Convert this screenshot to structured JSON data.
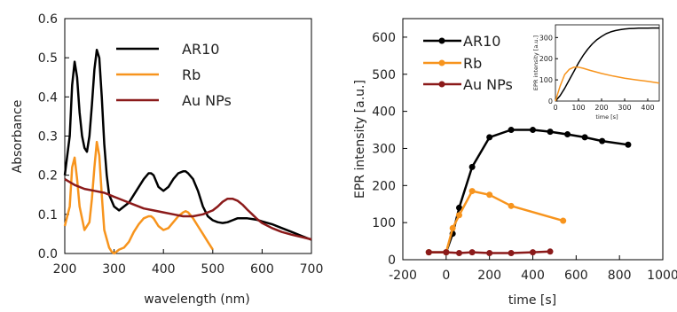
{
  "chart_data": [
    {
      "type": "line",
      "title": "",
      "xlabel": "wavelength (nm)",
      "ylabel": "Absorbance",
      "xlim": [
        200,
        700
      ],
      "ylim": [
        0,
        0.6
      ],
      "xticks": [
        200,
        300,
        400,
        500,
        600,
        700
      ],
      "yticks": [
        0.0,
        0.1,
        0.2,
        0.3,
        0.4,
        0.5,
        0.6
      ],
      "grid": false,
      "legend_position": "top-right",
      "series": [
        {
          "name": "AR10",
          "color": "#000000",
          "x": [
            200,
            210,
            215,
            220,
            225,
            230,
            235,
            240,
            245,
            250,
            255,
            260,
            265,
            270,
            275,
            280,
            285,
            290,
            300,
            310,
            320,
            330,
            340,
            350,
            360,
            370,
            375,
            380,
            390,
            400,
            410,
            420,
            430,
            440,
            445,
            450,
            460,
            470,
            480,
            490,
            500,
            510,
            520,
            530,
            540,
            550,
            560,
            570,
            580,
            590,
            600,
            620,
            640,
            660,
            680,
            700
          ],
          "y": [
            0.2,
            0.3,
            0.43,
            0.49,
            0.45,
            0.36,
            0.3,
            0.27,
            0.26,
            0.3,
            0.38,
            0.47,
            0.52,
            0.5,
            0.4,
            0.28,
            0.2,
            0.15,
            0.12,
            0.11,
            0.12,
            0.13,
            0.15,
            0.17,
            0.19,
            0.205,
            0.205,
            0.2,
            0.17,
            0.16,
            0.17,
            0.19,
            0.205,
            0.21,
            0.21,
            0.205,
            0.19,
            0.16,
            0.12,
            0.095,
            0.085,
            0.08,
            0.078,
            0.08,
            0.085,
            0.09,
            0.09,
            0.09,
            0.088,
            0.086,
            0.082,
            0.075,
            0.065,
            0.055,
            0.045,
            0.035
          ]
        },
        {
          "name": "Rb",
          "color": "#f7941d",
          "x": [
            200,
            210,
            215,
            220,
            225,
            230,
            240,
            250,
            255,
            260,
            265,
            270,
            275,
            280,
            290,
            295,
            300,
            310,
            320,
            330,
            340,
            350,
            360,
            370,
            375,
            380,
            390,
            400,
            410,
            420,
            430,
            440,
            445,
            450,
            460,
            470,
            480,
            490,
            500
          ],
          "y": [
            0.07,
            0.12,
            0.22,
            0.245,
            0.19,
            0.12,
            0.06,
            0.08,
            0.14,
            0.22,
            0.285,
            0.25,
            0.15,
            0.06,
            0.015,
            0.005,
            0.0,
            0.01,
            0.015,
            0.03,
            0.055,
            0.075,
            0.09,
            0.095,
            0.095,
            0.09,
            0.07,
            0.06,
            0.065,
            0.08,
            0.095,
            0.105,
            0.108,
            0.105,
            0.09,
            0.07,
            0.05,
            0.03,
            0.01
          ]
        },
        {
          "name": "Au NPs",
          "color": "#8b1a1a",
          "x": [
            200,
            220,
            240,
            260,
            280,
            300,
            320,
            340,
            360,
            380,
            400,
            420,
            440,
            460,
            480,
            500,
            510,
            520,
            530,
            540,
            550,
            560,
            570,
            580,
            590,
            600,
            620,
            640,
            660,
            680,
            700
          ],
          "y": [
            0.19,
            0.175,
            0.165,
            0.16,
            0.155,
            0.145,
            0.135,
            0.125,
            0.115,
            0.11,
            0.105,
            0.1,
            0.095,
            0.095,
            0.1,
            0.11,
            0.12,
            0.132,
            0.14,
            0.14,
            0.135,
            0.125,
            0.112,
            0.1,
            0.088,
            0.078,
            0.065,
            0.055,
            0.048,
            0.042,
            0.036
          ]
        }
      ]
    },
    {
      "type": "line",
      "title": "",
      "xlabel": "time [s]",
      "ylabel": "EPR intensity [a.u.]",
      "xlim": [
        -200,
        1000
      ],
      "ylim": [
        0,
        650
      ],
      "xticks": [
        -200,
        0,
        200,
        400,
        600,
        800,
        1000
      ],
      "yticks": [
        0,
        100,
        200,
        300,
        400,
        500,
        600
      ],
      "grid": false,
      "legend_position": "top-left",
      "series": [
        {
          "name": "AR10",
          "color": "#000000",
          "marker": "circle",
          "x": [
            -80,
            0,
            30,
            60,
            120,
            200,
            300,
            400,
            480,
            560,
            640,
            720,
            840
          ],
          "y": [
            20,
            20,
            70,
            140,
            250,
            330,
            350,
            350,
            345,
            338,
            330,
            320,
            310
          ]
        },
        {
          "name": "Rb",
          "color": "#f7941d",
          "marker": "circle",
          "x": [
            -80,
            0,
            30,
            60,
            120,
            200,
            300,
            540
          ],
          "y": [
            20,
            20,
            85,
            120,
            185,
            175,
            145,
            105
          ]
        },
        {
          "name": "Au NPs",
          "color": "#8b1a1a",
          "marker": "circle",
          "x": [
            -80,
            0,
            60,
            120,
            200,
            300,
            400,
            480
          ],
          "y": [
            20,
            20,
            18,
            20,
            18,
            18,
            20,
            22
          ]
        }
      ],
      "inset": {
        "type": "line",
        "xlabel": "time [s]",
        "ylabel": "EPR intensity [a.u.]",
        "xlim": [
          0,
          450
        ],
        "ylim": [
          0,
          360
        ],
        "xticks": [
          0,
          100,
          200,
          300,
          400
        ],
        "yticks": [
          0,
          100,
          200,
          300
        ],
        "series": [
          {
            "name": "AR10",
            "color": "#000000",
            "x": [
              0,
              20,
              40,
              60,
              80,
              100,
              120,
              140,
              160,
              180,
              200,
              220,
              240,
              260,
              280,
              300,
              320,
              340,
              360,
              380,
              400,
              420,
              450
            ],
            "y": [
              0,
              25,
              60,
              100,
              140,
              180,
              215,
              245,
              270,
              290,
              305,
              318,
              327,
              333,
              337,
              340,
              342,
              343,
              344,
              344,
              344,
              345,
              345
            ]
          },
          {
            "name": "Rb",
            "color": "#f7941d",
            "x": [
              0,
              20,
              40,
              60,
              80,
              100,
              120,
              150,
              200,
              250,
              300,
              350,
              400,
              450
            ],
            "y": [
              0,
              70,
              125,
              150,
              160,
              160,
              155,
              145,
              130,
              118,
              108,
              100,
              93,
              85
            ]
          }
        ]
      }
    }
  ]
}
